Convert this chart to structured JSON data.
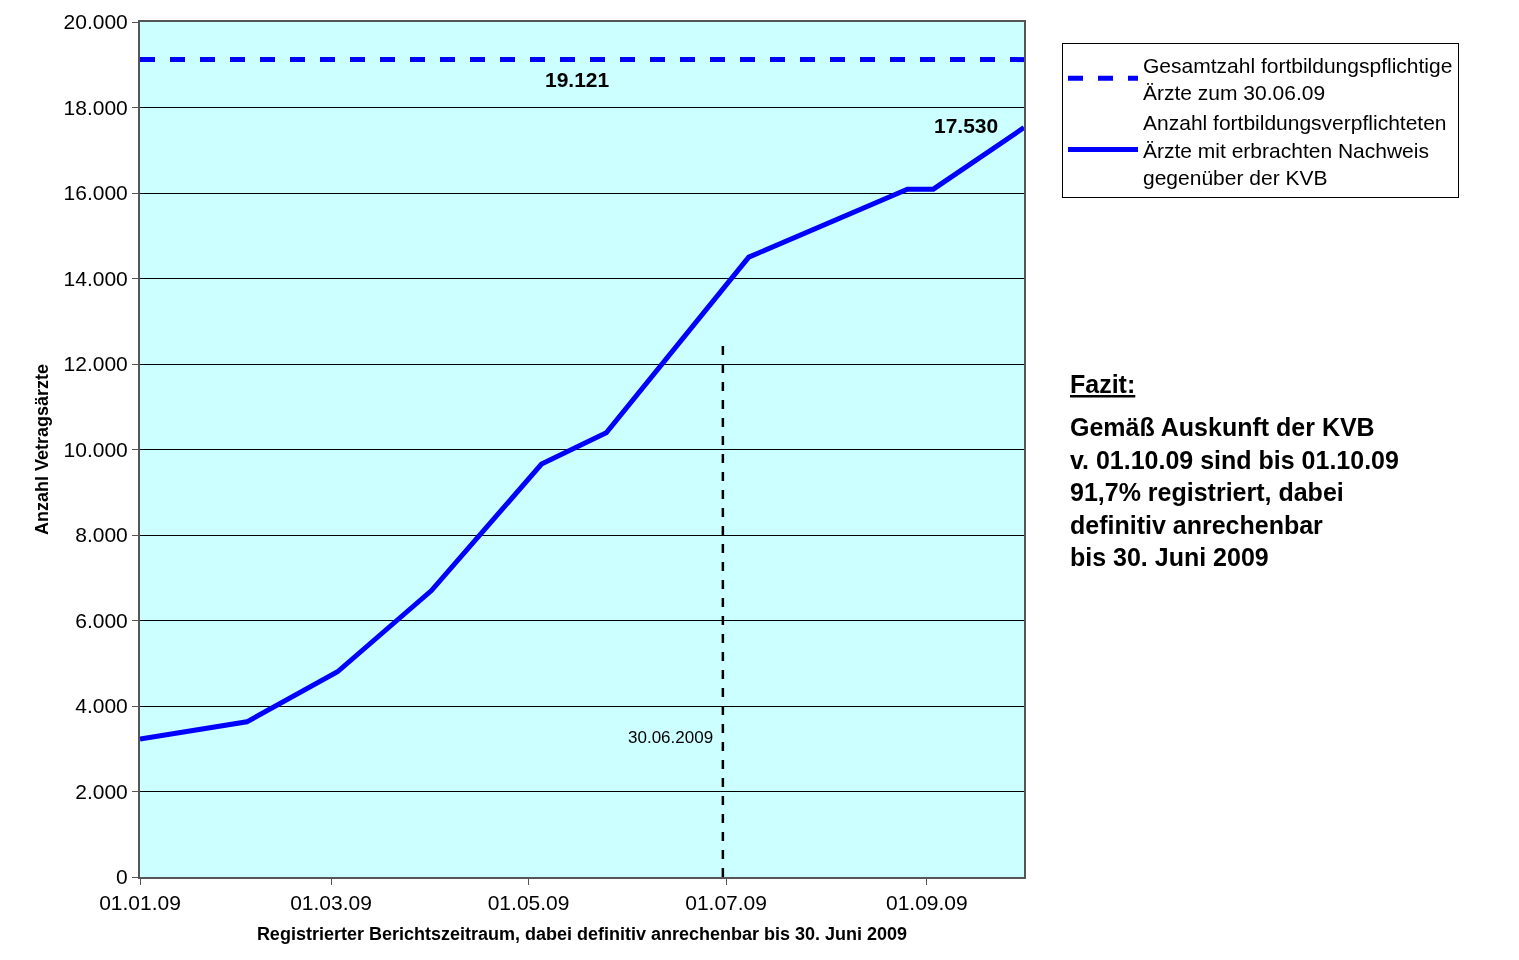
{
  "chart_data": {
    "type": "line",
    "xlabel": "Registrierter Berichtszeitraum, dabei definitiv anrechenbar bis 30. Juni 2009",
    "ylabel": "Anzahl Vetragsärzte",
    "xlim": [
      "2009-01-01",
      "2009-10-01"
    ],
    "xticks": [
      {
        "value": "2009-01-01",
        "label": "01.01.09"
      },
      {
        "value": "2009-03-01",
        "label": "01.03.09"
      },
      {
        "value": "2009-05-01",
        "label": "01.05.09"
      },
      {
        "value": "2009-07-01",
        "label": "01.07.09"
      },
      {
        "value": "2009-09-01",
        "label": "01.09.09"
      }
    ],
    "ylim": [
      0,
      20000
    ],
    "yticks": [
      {
        "value": 0,
        "label": "0"
      },
      {
        "value": 2000,
        "label": "2.000"
      },
      {
        "value": 4000,
        "label": "4.000"
      },
      {
        "value": 6000,
        "label": "6.000"
      },
      {
        "value": 8000,
        "label": "8.000"
      },
      {
        "value": 10000,
        "label": "10.000"
      },
      {
        "value": 12000,
        "label": "12.000"
      },
      {
        "value": 14000,
        "label": "14.000"
      },
      {
        "value": 16000,
        "label": "16.000"
      },
      {
        "value": 18000,
        "label": "18.000"
      },
      {
        "value": 20000,
        "label": "20.000"
      }
    ],
    "grid": "y",
    "legend": "right",
    "marker": "none",
    "series": [
      {
        "name": "Gesamtzahl fortbildungspflichtige Ärzte zum 30.06.09",
        "color": "#0000ff",
        "line_style": "dashed",
        "x": [
          "2009-01-01",
          "2009-10-01"
        ],
        "values": [
          19121,
          19121
        ]
      },
      {
        "name": "Anzahl fortbildungsverpflichteten Ärzte mit erbrachten Nachweis gegenüber der KVB",
        "color": "#0000ff",
        "line_style": "solid",
        "x": [
          "2009-01-01",
          "2009-02-03",
          "2009-03-03",
          "2009-04-01",
          "2009-05-05",
          "2009-05-25",
          "2009-07-08",
          "2009-08-26",
          "2009-09-03",
          "2009-10-01"
        ],
        "values": [
          3230,
          3630,
          4800,
          6700,
          9660,
          10390,
          14500,
          16090,
          16090,
          17530
        ]
      }
    ],
    "ref_lines": [
      {
        "axis": "x",
        "value": "2009-06-30",
        "label": "30.06.2009",
        "color": "#000000",
        "line_style": "dashed"
      }
    ],
    "annotations": [
      {
        "text": "19.121",
        "x": "2009-05-16",
        "y": 19121
      },
      {
        "text": "17.530",
        "x": "2009-10-01",
        "y": 17530
      },
      "Fazit:",
      "Gemäß Auskunft der KVB\nv. 01.10.09 sind bis 01.10.09\n91,7% registriert, dabei\ndefinitiv anrechenbar\nbis 30. Juni 2009"
    ]
  }
}
